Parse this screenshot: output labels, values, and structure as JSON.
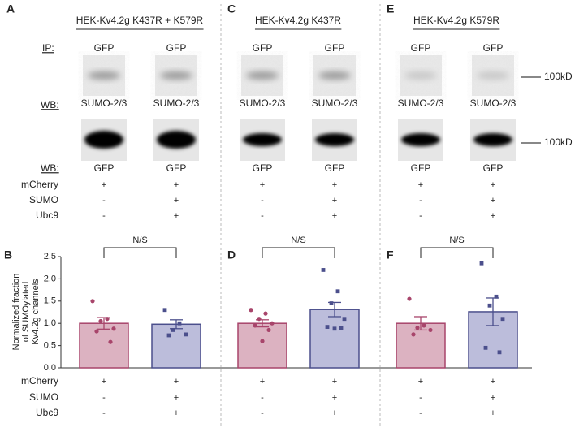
{
  "labels": {
    "ip": "IP:",
    "wb": "WB:",
    "marker": "100kD"
  },
  "conditions": {
    "names": [
      "mCherry",
      "SUMO",
      "Ubc9"
    ],
    "signs": [
      [
        "+",
        "-",
        "-"
      ],
      [
        "+",
        "+",
        "+"
      ]
    ]
  },
  "blots": [
    {
      "panel": "A",
      "title": "HEK-Kv4.2g K437R + K579R",
      "ip": [
        "GFP",
        "GFP"
      ],
      "wb_top": [
        "SUMO-2/3",
        "SUMO-2/3"
      ],
      "wb_bottom": [
        "GFP",
        "GFP"
      ]
    },
    {
      "panel": "C",
      "title": "HEK-Kv4.2g K437R",
      "ip": [
        "GFP",
        "GFP"
      ],
      "wb_top": [
        "SUMO-2/3",
        "SUMO-2/3"
      ],
      "wb_bottom": [
        "GFP",
        "GFP"
      ]
    },
    {
      "panel": "E",
      "title": "HEK-Kv4.2g K579R",
      "ip": [
        "GFP",
        "GFP"
      ],
      "wb_top": [
        "SUMO-2/3",
        "SUMO-2/3"
      ],
      "wb_bottom": [
        "GFP",
        "GFP"
      ]
    }
  ],
  "chart_data": [
    {
      "type": "bar",
      "panel": "B",
      "ylabel": [
        "Normalized fraction",
        "of SUMOylated",
        "Kv4.2g channels"
      ],
      "ylim": [
        0,
        2.5
      ],
      "yticks": [
        {
          "value": 0,
          "label": "0.0"
        },
        0.5,
        {
          "value": 1,
          "label": "1.0"
        },
        1.5,
        {
          "value": 2,
          "label": "2.0"
        },
        2.5
      ],
      "values": [
        1.0,
        0.98
      ],
      "errors": [
        0.13,
        0.1
      ],
      "colors": [
        "#a8456b",
        "#4b4f8c"
      ],
      "fills": [
        "#dcb2c1",
        "#bcbddb"
      ],
      "points": [
        [
          1.5,
          1.1,
          1.05,
          0.88,
          0.82,
          0.58
        ],
        [
          1.3,
          1.0,
          0.85,
          0.75,
          0.73
        ]
      ],
      "annotation": "N/S"
    },
    {
      "type": "bar",
      "panel": "D",
      "values": [
        1.0,
        1.31
      ],
      "errors": [
        0.08,
        0.16
      ],
      "colors": [
        "#a8456b",
        "#4b4f8c"
      ],
      "fills": [
        "#dcb2c1",
        "#bcbddb"
      ],
      "points": [
        [
          1.3,
          1.22,
          1.1,
          1.0,
          0.95,
          0.85,
          0.6
        ],
        [
          2.2,
          1.72,
          1.45,
          1.1,
          0.92,
          0.9,
          0.88
        ]
      ],
      "annotation": "N/S"
    },
    {
      "type": "bar",
      "panel": "F",
      "values": [
        1.0,
        1.26
      ],
      "errors": [
        0.15,
        0.31
      ],
      "colors": [
        "#a8456b",
        "#4b4f8c"
      ],
      "fills": [
        "#dcb2c1",
        "#bcbddb"
      ],
      "points": [
        [
          1.55,
          0.95,
          0.9,
          0.85,
          0.75
        ],
        [
          2.35,
          1.6,
          1.4,
          1.1,
          0.45,
          0.35
        ]
      ],
      "annotation": "N/S"
    }
  ]
}
